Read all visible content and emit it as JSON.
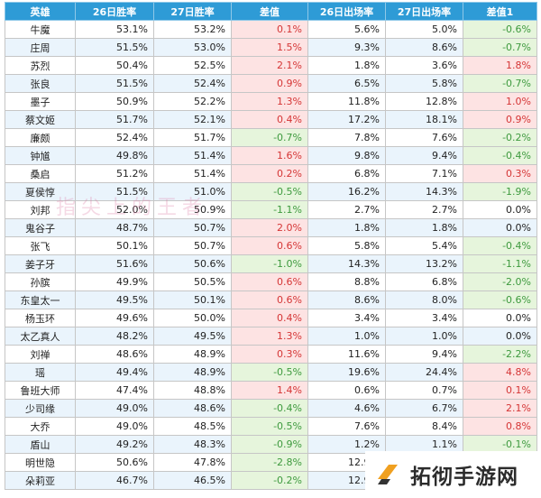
{
  "table": {
    "headers": [
      "英雄",
      "26日胜率",
      "27日胜率",
      "差值",
      "26日出场率",
      "27日出场率",
      "差值1"
    ],
    "rows": [
      [
        "牛魔",
        "53.1%",
        "53.2%",
        "0.1%",
        "5.6%",
        "5.0%",
        "-0.6%"
      ],
      [
        "庄周",
        "51.5%",
        "53.0%",
        "1.5%",
        "9.3%",
        "8.6%",
        "-0.7%"
      ],
      [
        "苏烈",
        "50.4%",
        "52.5%",
        "2.1%",
        "1.8%",
        "3.6%",
        "1.8%"
      ],
      [
        "张良",
        "51.5%",
        "52.4%",
        "0.9%",
        "6.5%",
        "5.8%",
        "-0.7%"
      ],
      [
        "墨子",
        "50.9%",
        "52.2%",
        "1.3%",
        "11.8%",
        "12.8%",
        "1.0%"
      ],
      [
        "蔡文姬",
        "51.7%",
        "52.1%",
        "0.4%",
        "17.2%",
        "18.1%",
        "0.9%"
      ],
      [
        "廉颇",
        "52.4%",
        "51.7%",
        "-0.7%",
        "7.8%",
        "7.6%",
        "-0.2%"
      ],
      [
        "钟馗",
        "49.8%",
        "51.4%",
        "1.6%",
        "9.8%",
        "9.4%",
        "-0.4%"
      ],
      [
        "桑启",
        "51.2%",
        "51.4%",
        "0.2%",
        "6.8%",
        "7.1%",
        "0.3%"
      ],
      [
        "夏侯惇",
        "51.5%",
        "51.0%",
        "-0.5%",
        "16.2%",
        "14.3%",
        "-1.9%"
      ],
      [
        "刘邦",
        "52.0%",
        "50.9%",
        "-1.1%",
        "2.7%",
        "2.7%",
        "0.0%"
      ],
      [
        "鬼谷子",
        "48.7%",
        "50.7%",
        "2.0%",
        "1.8%",
        "1.8%",
        "0.0%"
      ],
      [
        "张飞",
        "50.1%",
        "50.7%",
        "0.6%",
        "5.8%",
        "5.4%",
        "-0.4%"
      ],
      [
        "姜子牙",
        "51.6%",
        "50.6%",
        "-1.0%",
        "14.3%",
        "13.2%",
        "-1.1%"
      ],
      [
        "孙膑",
        "49.9%",
        "50.5%",
        "0.6%",
        "8.8%",
        "6.8%",
        "-2.0%"
      ],
      [
        "东皇太一",
        "49.5%",
        "50.1%",
        "0.6%",
        "8.6%",
        "8.0%",
        "-0.6%"
      ],
      [
        "杨玉环",
        "49.6%",
        "50.0%",
        "0.4%",
        "3.4%",
        "3.4%",
        "0.0%"
      ],
      [
        "太乙真人",
        "48.2%",
        "49.5%",
        "1.3%",
        "1.0%",
        "1.0%",
        "0.0%"
      ],
      [
        "刘禅",
        "48.6%",
        "48.9%",
        "0.3%",
        "11.6%",
        "9.4%",
        "-2.2%"
      ],
      [
        "瑶",
        "49.4%",
        "48.9%",
        "-0.5%",
        "19.6%",
        "24.4%",
        "4.8%"
      ],
      [
        "鲁班大师",
        "47.4%",
        "48.8%",
        "1.4%",
        "0.6%",
        "0.7%",
        "0.1%"
      ],
      [
        "少司缘",
        "49.0%",
        "48.6%",
        "-0.4%",
        "4.6%",
        "6.7%",
        "2.1%"
      ],
      [
        "大乔",
        "49.0%",
        "48.5%",
        "-0.5%",
        "7.6%",
        "8.4%",
        "0.8%"
      ],
      [
        "盾山",
        "49.2%",
        "48.3%",
        "-0.9%",
        "1.2%",
        "1.1%",
        "-0.1%"
      ],
      [
        "明世隐",
        "50.6%",
        "47.8%",
        "-2.8%",
        "12.9%",
        "",
        ""
      ],
      [
        "朵莉亚",
        "46.7%",
        "46.5%",
        "-0.2%",
        "12.9%",
        "",
        ""
      ]
    ]
  },
  "watermark": "指尖上的王者",
  "logo": {
    "text": "拓彻手游网",
    "icon": "brand-logo-icon"
  },
  "colors": {
    "header_bg": "#2e9bd6",
    "positive_bg": "#fde3e3",
    "positive_text": "#d53535",
    "negative_bg": "#e6f5dc",
    "negative_text": "#3e9a3e",
    "alt_row_bg": "#eaf4fc"
  }
}
